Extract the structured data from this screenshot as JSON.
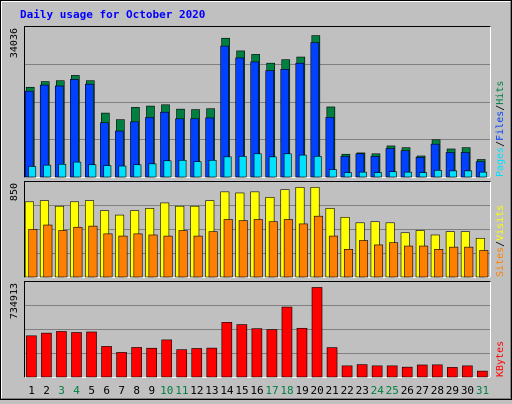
{
  "chart_data": {
    "type": "bar",
    "title": "Daily usage for October 2020",
    "categories": [
      "1",
      "2",
      "3",
      "4",
      "5",
      "6",
      "7",
      "8",
      "9",
      "10",
      "11",
      "12",
      "13",
      "14",
      "15",
      "16",
      "17",
      "18",
      "19",
      "20",
      "21",
      "22",
      "23",
      "24",
      "25",
      "26",
      "27",
      "28",
      "29",
      "30",
      "31"
    ],
    "weekend_days": [
      "3",
      "4",
      "10",
      "11",
      "17",
      "18",
      "24",
      "25",
      "31"
    ],
    "panels": [
      {
        "id": "hits-files-pages",
        "axis_max_label": "34036",
        "ylim": [
          0,
          34036
        ],
        "series": [
          {
            "name": "Hits",
            "color": "#008040",
            "values": [
              20500,
              21800,
              22000,
              23200,
              22000,
              14600,
              13100,
              15900,
              16200,
              16500,
              15500,
              15400,
              15600,
              31700,
              28800,
              28000,
              26000,
              26800,
              27400,
              32300,
              16000,
              5200,
              5500,
              5300,
              7100,
              6700,
              4800,
              8500,
              6400,
              6700,
              4000
            ]
          },
          {
            "name": "Files",
            "color": "#0040ff",
            "values": [
              19600,
              21000,
              20800,
              22300,
              21200,
              12400,
              10500,
              12600,
              13600,
              14800,
              13300,
              13300,
              13500,
              29900,
              27200,
              26300,
              24300,
              24600,
              26000,
              30700,
              13600,
              4700,
              5300,
              4700,
              6500,
              6000,
              4500,
              7500,
              5600,
              5600,
              3500
            ]
          },
          {
            "name": "Pages",
            "color": "#00e0ff",
            "values": [
              2400,
              2700,
              2900,
              3400,
              2800,
              2600,
              2500,
              2800,
              3000,
              3700,
              3800,
              3500,
              3800,
              4600,
              4700,
              5300,
              4600,
              5300,
              5000,
              4700,
              1700,
              1000,
              1100,
              1000,
              1200,
              1100,
              1000,
              1500,
              1400,
              1400,
              1100
            ]
          }
        ],
        "legend_order": [
          "Pages",
          "Files",
          "Hits"
        ],
        "legend_separator": "/"
      },
      {
        "id": "visits-sites",
        "axis_max_label": "850",
        "ylim": [
          0,
          850
        ],
        "series": [
          {
            "name": "Visits",
            "color": "#ffff00",
            "values": [
              680,
              690,
              640,
              680,
              690,
              600,
              560,
              600,
              620,
              670,
              640,
              640,
              690,
              770,
              760,
              770,
              720,
              790,
              810,
              810,
              620,
              540,
              490,
              500,
              490,
              400,
              420,
              380,
              410,
              410,
              350
            ]
          },
          {
            "name": "Sites",
            "color": "#ff8000",
            "values": [
              430,
              470,
              420,
              450,
              460,
              390,
              370,
              390,
              380,
              370,
              420,
              370,
              410,
              520,
              510,
              520,
              500,
              520,
              480,
              550,
              370,
              250,
              330,
              290,
              310,
              280,
              280,
              250,
              270,
              270,
              240
            ]
          }
        ],
        "legend_order": [
          "Sites",
          "Visits"
        ],
        "legend_separator": "/"
      },
      {
        "id": "kbytes",
        "axis_max_label": "734913",
        "ylim": [
          0,
          734913
        ],
        "series": [
          {
            "name": "KBytes",
            "color": "#ff0000",
            "values": [
              322000,
              343000,
              356000,
              348000,
              352000,
              239000,
              192000,
              231000,
              225000,
              290000,
              214000,
              223000,
              226000,
              427000,
              410000,
              378000,
              371000,
              547000,
              381000,
              700000,
              230000,
              87000,
              97000,
              87000,
              87000,
              77000,
              94000,
              95000,
              75000,
              87000,
              46000
            ]
          }
        ],
        "legend_order": [
          "KBytes"
        ],
        "legend_separator": "/"
      }
    ],
    "grid": true,
    "legend_placement": "right (vertical)"
  },
  "colors": {
    "background": "#c0c0c0",
    "plot_background": "#c0c0c0",
    "title": "#0000ff",
    "day_label": "#000000",
    "weekend_day_label": "#008040",
    "gridline": "#808080",
    "separator": "#000000"
  }
}
